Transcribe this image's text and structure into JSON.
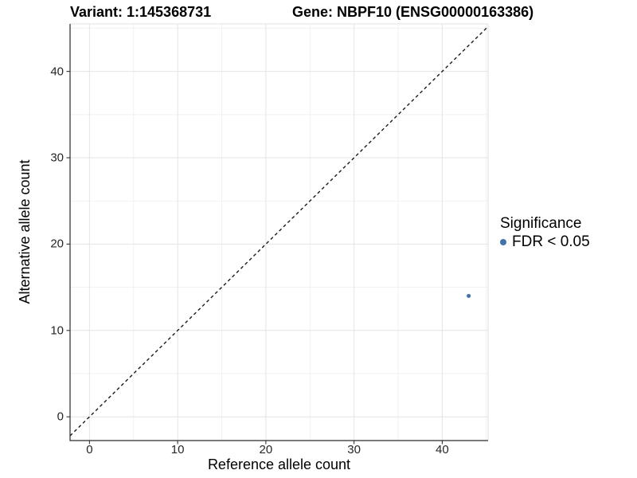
{
  "header": {
    "variant_title": "Variant: 1:145368731",
    "gene_title": "Gene: NBPF10 (ENSG00000163386)"
  },
  "legend": {
    "title": "Significance",
    "items": [
      {
        "label": "FDR < 0.05",
        "color": "#4472a8"
      }
    ]
  },
  "chart_data": {
    "type": "scatter",
    "title": "Variant: 1:145368731    Gene: NBPF10 (ENSG00000163386)",
    "xlabel": "Reference allele count",
    "ylabel": "Alternative allele count",
    "x_ticks": [
      0,
      10,
      20,
      30,
      40
    ],
    "y_ticks": [
      0,
      10,
      20,
      30,
      40
    ],
    "x_minor_gridlines": [
      5,
      15,
      25,
      35,
      45
    ],
    "y_minor_gridlines": [
      5,
      15,
      25,
      35,
      45
    ],
    "x_range": [
      -2.2,
      45.2
    ],
    "y_range": [
      -2.75,
      45.5
    ],
    "series": [
      {
        "name": "FDR < 0.05",
        "color": "#4472a8",
        "points": [
          {
            "x": 43,
            "y": 14
          }
        ]
      }
    ],
    "reference_line": {
      "type": "identity y = x",
      "style": "dashed",
      "color": "#1a1a1a"
    },
    "grid": "major and minor, light gray on white",
    "legend_position": "right"
  },
  "colors": {
    "background": "#ffffff",
    "grid_major": "#e4e4e4",
    "grid_minor": "#f1f1f1",
    "panel_border": "#e2e2e2",
    "axis_line": "#2b2b2b",
    "tick_mark": "#333333",
    "tick_label": "#262626",
    "point": "#4472a8"
  }
}
